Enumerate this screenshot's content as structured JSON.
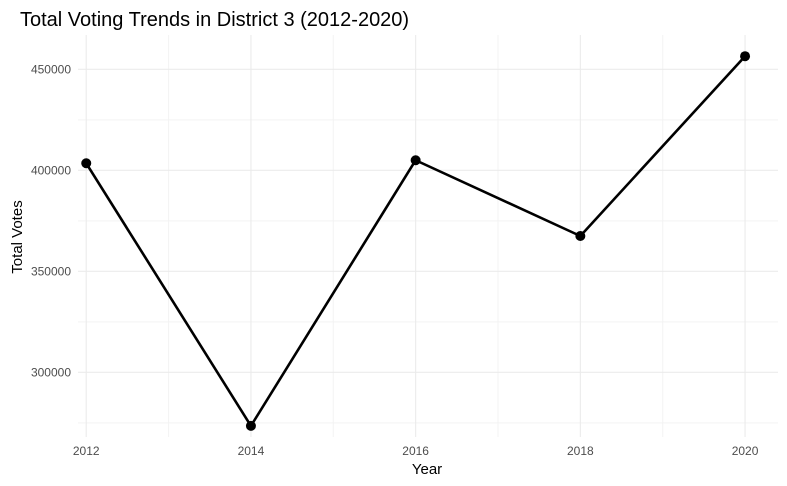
{
  "chart_data": {
    "type": "line",
    "title": "Total Voting Trends in District 3 (2012-2020)",
    "xlabel": "Year",
    "ylabel": "Total Votes",
    "x": [
      2012,
      2014,
      2016,
      2018,
      2020
    ],
    "x_ticks": [
      "2012",
      "2014",
      "2016",
      "2018",
      "2020"
    ],
    "y_ticks": [
      "300000",
      "350000",
      "400000",
      "450000"
    ],
    "series": [
      {
        "values": [
          403500,
          273500,
          405000,
          367500,
          456500
        ]
      }
    ],
    "xlim": [
      2011.9,
      2020.4
    ],
    "ylim": [
      268000,
      467000
    ],
    "grid": true,
    "legend": "none",
    "colors": {
      "line": "#000000",
      "point": "#000000",
      "grid_major": "#ebebeb",
      "grid_minor": "#f3f3f3"
    }
  }
}
